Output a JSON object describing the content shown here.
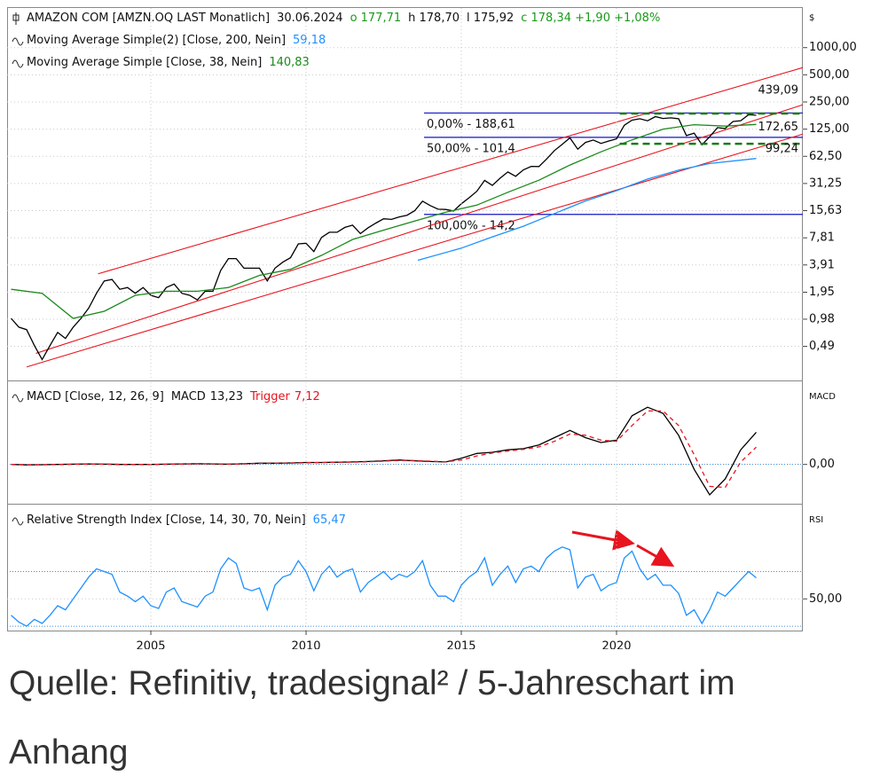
{
  "chart_data": [
    {
      "type": "line",
      "log_scale": true,
      "grid": true,
      "axis_label": "$",
      "title": "AMAZON COM [AMZN.OQ LAST Monatlich]",
      "quote": [
        "30.06.2024",
        "o 177,71",
        "h 178,70",
        "l 175,92",
        "c 178,34 +1,90 +1,08%"
      ],
      "xlim": [
        2000.37,
        2026
      ],
      "ylim": [
        0.21,
        2750
      ],
      "yticks": [
        {
          "value": 1000,
          "label": "1000,00"
        },
        {
          "value": 500,
          "label": "500,00"
        },
        {
          "value": 250,
          "label": "250,00"
        },
        {
          "value": 125,
          "label": "125,00"
        },
        {
          "value": 62.5,
          "label": "62,50"
        },
        {
          "value": 31.25,
          "label": "31,25"
        },
        {
          "value": 15.63,
          "label": "15,63"
        },
        {
          "value": 7.81,
          "label": "7,81"
        },
        {
          "value": 3.91,
          "label": "3,91"
        },
        {
          "value": 1.95,
          "label": "1,95"
        },
        {
          "value": 0.98,
          "label": "0,98"
        },
        {
          "value": 0.49,
          "label": "0,49"
        }
      ],
      "series": [
        {
          "color": "#000000",
          "x": [
            2000.5,
            2000.75,
            2001,
            2001.25,
            2001.5,
            2001.75,
            2002,
            2002.25,
            2002.5,
            2002.75,
            2003,
            2003.25,
            2003.5,
            2003.75,
            2004,
            2004.25,
            2004.5,
            2004.75,
            2005,
            2005.25,
            2005.5,
            2005.75,
            2006,
            2006.25,
            2006.5,
            2006.75,
            2007,
            2007.25,
            2007.5,
            2007.75,
            2008,
            2008.25,
            2008.5,
            2008.75,
            2009,
            2009.25,
            2009.5,
            2009.75,
            2010,
            2010.25,
            2010.5,
            2010.75,
            2011,
            2011.25,
            2011.5,
            2011.75,
            2012,
            2012.25,
            2012.5,
            2012.75,
            2013,
            2013.25,
            2013.5,
            2013.75,
            2014,
            2014.25,
            2014.5,
            2014.75,
            2015,
            2015.25,
            2015.5,
            2015.75,
            2016,
            2016.25,
            2016.5,
            2016.75,
            2017,
            2017.25,
            2017.5,
            2017.75,
            2018,
            2018.25,
            2018.5,
            2018.75,
            2019,
            2019.25,
            2019.5,
            2019.75,
            2020,
            2020.25,
            2020.5,
            2020.75,
            2021,
            2021.25,
            2021.5,
            2021.75,
            2022,
            2022.25,
            2022.5,
            2022.75,
            2023,
            2023.25,
            2023.5,
            2023.75,
            2024,
            2024.25,
            2024.5
          ],
          "values": [
            1.0,
            0.8,
            0.75,
            0.5,
            0.35,
            0.5,
            0.7,
            0.6,
            0.8,
            1.0,
            1.3,
            1.9,
            2.6,
            2.7,
            2.1,
            2.2,
            1.9,
            2.2,
            1.8,
            1.7,
            2.2,
            2.4,
            1.9,
            1.8,
            1.6,
            2.0,
            2.0,
            3.4,
            4.6,
            4.6,
            3.6,
            3.6,
            3.6,
            2.6,
            3.6,
            4.2,
            4.7,
            6.7,
            6.8,
            5.5,
            7.9,
            9.0,
            9.0,
            10.2,
            10.8,
            8.7,
            10.1,
            11.4,
            12.7,
            12.5,
            13.3,
            13.9,
            15.6,
            19.9,
            17.8,
            16.2,
            16.1,
            15.5,
            18.6,
            21.7,
            25.6,
            33.8,
            29.7,
            35.8,
            41.9,
            37.5,
            44.3,
            48.4,
            48.1,
            58.5,
            72.4,
            85,
            100,
            75,
            89,
            94.7,
            86.8,
            92.4,
            97.5,
            138,
            157,
            162.8,
            154.7,
            172,
            164,
            166.7,
            162.9,
            106,
            113,
            84,
            103,
            130,
            127,
            151.9,
            155.2,
            180.4,
            178.34
          ]
        },
        {
          "name": "Moving Average Simple(2) [Close, 200, Nein]",
          "last_label": "59,18",
          "color": "#1e90ff",
          "x": [
            2013.6,
            2015,
            2016,
            2017,
            2018,
            2019,
            2020,
            2021,
            2022,
            2023,
            2024.5
          ],
          "values": [
            4.4,
            6,
            8,
            10.5,
            14.5,
            20,
            26,
            35,
            44,
            52,
            59.18
          ]
        },
        {
          "name": "Moving Average Simple [Close, 38, Nein]",
          "last_label": "140,83",
          "color": "#1a8a1a",
          "x": [
            2000.5,
            2001.5,
            2002.5,
            2003.5,
            2004.5,
            2005.5,
            2006.5,
            2007.5,
            2008.5,
            2009.5,
            2010.5,
            2011.5,
            2012.5,
            2013.5,
            2014.5,
            2015.5,
            2016.5,
            2017.5,
            2018.5,
            2019.5,
            2020.5,
            2021.5,
            2022.5,
            2023.5,
            2024.5
          ],
          "values": [
            2.1,
            1.9,
            1.0,
            1.2,
            1.8,
            2.0,
            2.0,
            2.2,
            3.0,
            3.5,
            5.0,
            7.5,
            9.5,
            12,
            15,
            18,
            25,
            34,
            50,
            70,
            95,
            125,
            140,
            135,
            140.83
          ]
        }
      ],
      "trendlines": [
        {
          "color": "#e8141e",
          "x": [
            2003.3,
            2026
          ],
          "values": [
            3.12,
            601
          ]
        },
        {
          "color": "#e8141e",
          "x": [
            2001.3,
            2026
          ],
          "values": [
            0.41,
            233
          ]
        },
        {
          "color": "#e8141e",
          "x": [
            2001.0,
            2026
          ],
          "values": [
            0.29,
            110
          ]
        }
      ],
      "level_labels": [
        {
          "value": 439.09,
          "label": "439,09"
        },
        {
          "value": 172.65,
          "label": "172,65"
        },
        {
          "value": 99.24,
          "label": "99,24"
        }
      ],
      "level_label_color": "#e8141e",
      "fib_start": 2013.8,
      "fib_color": "#1414c8",
      "fib_levels": [
        {
          "value": 188.61,
          "label": "0,00% - 188,61"
        },
        {
          "value": 101.4,
          "label": "50,00% - 101,4"
        },
        {
          "value": 14.2,
          "label": "100,00% - 14,2"
        }
      ],
      "dashed_start": 2020.1,
      "dashed_color": "#1a7a1a",
      "dashed_levels": [
        186,
        86
      ]
    },
    {
      "type": "line",
      "grid": true,
      "axis_label": "MACD",
      "title": "MACD [Close, 12, 26, 9]",
      "xlim": [
        2000.37,
        2026
      ],
      "ylim": [
        -15.8,
        33.8
      ],
      "yticks": [
        {
          "value": 0,
          "label": "0,00"
        }
      ],
      "bands": [
        0
      ],
      "band_color": "#3a8ee0",
      "series": [
        {
          "name": "MACD",
          "last_label": "13,23",
          "color": "#000000",
          "x": [
            2000.5,
            2001,
            2001.5,
            2002,
            2002.5,
            2003,
            2003.5,
            2004,
            2004.5,
            2005,
            2005.5,
            2006,
            2006.5,
            2007,
            2007.5,
            2008,
            2008.5,
            2009,
            2009.5,
            2010,
            2010.5,
            2011,
            2011.5,
            2012,
            2012.5,
            2013,
            2013.5,
            2014,
            2014.5,
            2015,
            2015.5,
            2016,
            2016.5,
            2017,
            2017.5,
            2018,
            2018.5,
            2019,
            2019.5,
            2020,
            2020.5,
            2021,
            2021.5,
            2022,
            2022.5,
            2023,
            2023.5,
            2024,
            2024.5
          ],
          "values": [
            0,
            -0.2,
            -0.1,
            0,
            0.1,
            0.2,
            0.1,
            0,
            0,
            0,
            0.1,
            0.2,
            0.3,
            0.2,
            0.1,
            0.3,
            0.5,
            0.5,
            0.6,
            0.8,
            0.8,
            0.9,
            1.0,
            1.2,
            1.5,
            1.8,
            1.5,
            1.2,
            1.0,
            2.5,
            4.5,
            5,
            6,
            6.5,
            8,
            11,
            14,
            11,
            9,
            10,
            20,
            23.5,
            21,
            12,
            -2,
            -12.5,
            -6,
            6,
            13.23
          ]
        },
        {
          "name": "Trigger",
          "last_label": "7,12",
          "color": "#e8141e",
          "dash": true,
          "x": [
            2000.5,
            2001,
            2001.5,
            2002,
            2002.5,
            2003,
            2003.5,
            2004,
            2004.5,
            2005,
            2005.5,
            2006,
            2006.5,
            2007,
            2007.5,
            2008,
            2008.5,
            2009,
            2009.5,
            2010,
            2010.5,
            2011,
            2011.5,
            2012,
            2012.5,
            2013,
            2013.5,
            2014,
            2014.5,
            2015,
            2015.5,
            2016,
            2016.5,
            2017,
            2017.5,
            2018,
            2018.5,
            2019,
            2019.5,
            2020,
            2020.5,
            2021,
            2021.5,
            2022,
            2022.5,
            2023,
            2023.5,
            2024,
            2024.5
          ],
          "values": [
            0,
            -0.1,
            -0.15,
            -0.05,
            0.05,
            0.15,
            0.15,
            0.05,
            0,
            0,
            0.05,
            0.15,
            0.25,
            0.25,
            0.15,
            0.2,
            0.4,
            0.5,
            0.55,
            0.7,
            0.8,
            0.85,
            0.95,
            1.1,
            1.35,
            1.65,
            1.6,
            1.35,
            1.1,
            1.8,
            3.5,
            4.7,
            5.5,
            6.2,
            7.2,
            9.5,
            12.5,
            12,
            10,
            9.5,
            16,
            22,
            22,
            16,
            4,
            -9,
            -9.5,
            1,
            7.12
          ]
        }
      ]
    },
    {
      "type": "line",
      "grid": true,
      "axis_label": "RSI",
      "title": "Relative Strength Index [Close, 14, 30, 70, Nein]",
      "xlim": [
        2000.37,
        2026
      ],
      "ylim": [
        26.8,
        118.4
      ],
      "yticks": [
        {
          "value": 50,
          "label": "50,00"
        }
      ],
      "bands": [
        30,
        70
      ],
      "band_color": "#3a8ee0",
      "xticks": [
        2005,
        2010,
        2015,
        2020
      ],
      "series": [
        {
          "last_label": "65,47",
          "color": "#1e90ff",
          "x": [
            2000.5,
            2000.75,
            2001,
            2001.25,
            2001.5,
            2001.75,
            2002,
            2002.25,
            2002.5,
            2002.75,
            2003,
            2003.25,
            2003.5,
            2003.75,
            2004,
            2004.25,
            2004.5,
            2004.75,
            2005,
            2005.25,
            2005.5,
            2005.75,
            2006,
            2006.25,
            2006.5,
            2006.75,
            2007,
            2007.25,
            2007.5,
            2007.75,
            2008,
            2008.25,
            2008.5,
            2008.75,
            2009,
            2009.25,
            2009.5,
            2009.75,
            2010,
            2010.25,
            2010.5,
            2010.75,
            2011,
            2011.25,
            2011.5,
            2011.75,
            2012,
            2012.25,
            2012.5,
            2012.75,
            2013,
            2013.25,
            2013.5,
            2013.75,
            2014,
            2014.25,
            2014.5,
            2014.75,
            2015,
            2015.25,
            2015.5,
            2015.75,
            2016,
            2016.25,
            2016.5,
            2016.75,
            2017,
            2017.25,
            2017.5,
            2017.75,
            2018,
            2018.25,
            2018.5,
            2018.75,
            2019,
            2019.25,
            2019.5,
            2019.75,
            2020,
            2020.25,
            2020.5,
            2020.75,
            2021,
            2021.25,
            2021.5,
            2021.75,
            2022,
            2022.25,
            2022.5,
            2022.75,
            2023,
            2023.25,
            2023.5,
            2023.75,
            2024,
            2024.25,
            2024.5
          ],
          "values": [
            38,
            33,
            30,
            35,
            32,
            38,
            45,
            42,
            50,
            58,
            66,
            72,
            70,
            68,
            55,
            52,
            48,
            52,
            45,
            43,
            55,
            58,
            48,
            46,
            44,
            52,
            55,
            72,
            80,
            76,
            58,
            56,
            58,
            42,
            60,
            66,
            68,
            78,
            70,
            56,
            68,
            74,
            66,
            70,
            72,
            55,
            62,
            66,
            70,
            64,
            68,
            66,
            70,
            78,
            60,
            52,
            52,
            48,
            60,
            66,
            70,
            80,
            60,
            68,
            74,
            62,
            72,
            74,
            70,
            80,
            85,
            88,
            86,
            58,
            66,
            68,
            56,
            60,
            62,
            80,
            85,
            72,
            64,
            68,
            60,
            60,
            54,
            38,
            42,
            32,
            42,
            55,
            52,
            58,
            64,
            70,
            65.47
          ]
        }
      ]
    }
  ],
  "caption": "Quelle: Refinitiv, tradesignal² / 5-Jahreschart im Anhang"
}
